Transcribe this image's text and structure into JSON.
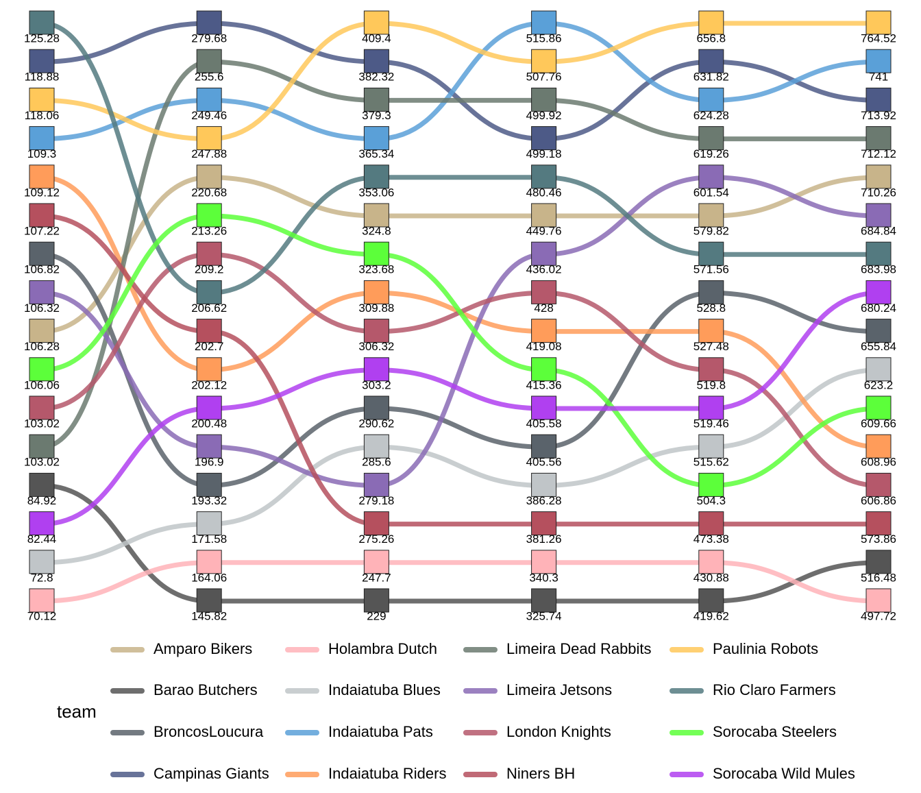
{
  "chart_data": {
    "type": "bump",
    "legend_title": "team",
    "series": [
      {
        "name": "Amparo Bikers",
        "color": "#c8b48a",
        "values": [
          106.28,
          220.68,
          324.8,
          449.76,
          579.82,
          710.26
        ]
      },
      {
        "name": "Barao Butchers",
        "color": "#555555",
        "values": [
          84.92,
          145.82,
          229,
          325.74,
          419.62,
          516.48
        ]
      },
      {
        "name": "BroncosLoucura",
        "color": "#5a636b",
        "values": [
          106.82,
          193.32,
          290.62,
          405.56,
          528.8,
          655.84
        ]
      },
      {
        "name": "Campinas Giants",
        "color": "#4d5a87",
        "values": [
          118.88,
          279.68,
          382.32,
          499.18,
          631.82,
          713.92
        ]
      },
      {
        "name": "Holambra Dutch",
        "color": "#ffb3b8",
        "values": [
          70.12,
          164.06,
          247.7,
          340.3,
          430.88,
          497.72
        ]
      },
      {
        "name": "Indaiatuba Blues",
        "color": "#c0c5c8",
        "values": [
          72.8,
          171.58,
          285.6,
          386.28,
          515.62,
          623.2
        ]
      },
      {
        "name": "Indaiatuba Pats",
        "color": "#5aa0d8",
        "values": [
          109.3,
          249.46,
          365.34,
          515.86,
          624.28,
          741
        ]
      },
      {
        "name": "Indaiatuba Riders",
        "color": "#ff9c5a",
        "values": [
          109.12,
          202.12,
          309.88,
          419.08,
          527.48,
          608.96
        ]
      },
      {
        "name": "Limeira Dead Rabbits",
        "color": "#6b7a70",
        "values": [
          103.02,
          255.6,
          379.3,
          499.92,
          619.26,
          712.12
        ]
      },
      {
        "name": "Limeira Jetsons",
        "color": "#8a6bb5",
        "values": [
          106.32,
          196.9,
          279.18,
          436.02,
          601.54,
          684.84
        ]
      },
      {
        "name": "London Knights",
        "color": "#b5586b",
        "values": [
          103.02,
          209.2,
          306.32,
          428,
          519.8,
          606.86
        ]
      },
      {
        "name": "Niners BH",
        "color": "#b5505e",
        "values": [
          107.22,
          202.7,
          275.26,
          381.26,
          473.38,
          573.86
        ]
      },
      {
        "name": "Paulinia Robots",
        "color": "#ffc85a",
        "values": [
          118.06,
          247.88,
          409.4,
          507.76,
          656.8,
          764.52
        ]
      },
      {
        "name": "Rio Claro Farmers",
        "color": "#547a80",
        "values": [
          125.28,
          206.62,
          353.06,
          480.46,
          571.56,
          683.98
        ]
      },
      {
        "name": "Sorocaba Steelers",
        "color": "#5cff3a",
        "values": [
          106.06,
          213.26,
          323.68,
          415.36,
          504.3,
          609.66
        ]
      },
      {
        "name": "Sorocaba Wild Mules",
        "color": "#b040f0",
        "values": [
          82.44,
          200.48,
          303.2,
          405.58,
          519.46,
          680.24
        ]
      }
    ]
  }
}
